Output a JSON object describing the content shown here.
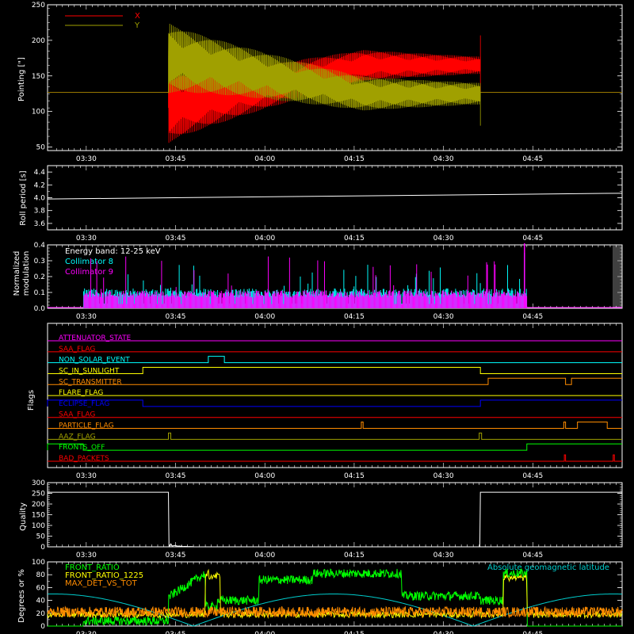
{
  "colors": {
    "background": "#000000",
    "axes": "#ffffff",
    "x_series": "#ff0000",
    "y_series": "#a0a000",
    "collimator8": "#00ffff",
    "collimator9": "#ff00ff",
    "front_ratio": "#00ff00",
    "front_ratio_1225": "#ffff00",
    "max_det_vs_tot": "#ff8c00",
    "geomag": "#00cccc"
  },
  "time_axis": {
    "labels": [
      "03:30",
      "03:45",
      "04:00",
      "04:15",
      "04:30",
      "04:45"
    ],
    "minutes": [
      210,
      225,
      240,
      255,
      270,
      285
    ],
    "range_minutes": [
      203.5,
      300
    ]
  },
  "chart_data": [
    {
      "panel": "pointing",
      "type": "line",
      "ylabel": "Pointing [\"]",
      "ylim": [
        45,
        250
      ],
      "yticks": [
        "50",
        "100",
        "150",
        "200",
        "250"
      ],
      "ytick_values": [
        50,
        100,
        150,
        200,
        250
      ],
      "legend": [
        "X",
        "Y"
      ],
      "legend_placement": "top-left",
      "series": [
        {
          "name": "X",
          "key": "x",
          "baseline": 127,
          "start": 223.8,
          "end": 276.2,
          "center_start": 105,
          "center_end": 165,
          "amp_start": 50,
          "amp_end": 12,
          "spike_max": 207
        },
        {
          "name": "Y",
          "key": "y",
          "baseline": 127,
          "start": 223.8,
          "end": 276.2,
          "center_start": 175,
          "center_end": 125,
          "amp_start": 50,
          "amp_end": 15,
          "spike_min": 80
        }
      ]
    },
    {
      "panel": "roll",
      "type": "line",
      "ylabel": "Roll period [s]",
      "ylim": [
        3.5,
        4.5
      ],
      "yticks": [
        "3.6",
        "3.8",
        "4.0",
        "4.2",
        "4.4"
      ],
      "ytick_values": [
        3.6,
        3.8,
        4.0,
        4.2,
        4.4
      ],
      "series": [
        {
          "name": "",
          "x": [
            203.5,
            300
          ],
          "y": [
            3.98,
            4.07
          ]
        }
      ]
    },
    {
      "panel": "modulation",
      "type": "bar",
      "ylabel": [
        "Normalized",
        "modulation"
      ],
      "ylim": [
        0,
        0.4
      ],
      "yticks": [
        "0.0",
        "0.1",
        "0.2",
        "0.3",
        "0.4"
      ],
      "ytick_values": [
        0.0,
        0.1,
        0.2,
        0.3,
        0.4
      ],
      "energy_band": "Energy band: 12-25 keV",
      "series": [
        {
          "name": "Collimator 8",
          "key": "collimator8",
          "start": 209.5,
          "end": 284.0,
          "typical": 0.1,
          "max": 0.35
        },
        {
          "name": "Collimator 9",
          "key": "collimator9",
          "start": 209.5,
          "end": 284.0,
          "typical": 0.09,
          "max": 0.41
        }
      ]
    },
    {
      "panel": "flags",
      "type": "line",
      "ylabel": "Flags",
      "flags": [
        {
          "name": "ATTENUATOR_STATE",
          "color": "#ff00ff",
          "steps": []
        },
        {
          "name": "SAA_FLAG",
          "color": "#ff0000",
          "steps": []
        },
        {
          "name": "NON_SOLAR_EVENT",
          "color": "#00ffff",
          "steps": [
            [
              230.5,
              1
            ],
            [
              233.2,
              0
            ]
          ]
        },
        {
          "name": "SC_IN_SUNLIGHT",
          "color": "#ffff00",
          "steps": [
            [
              203.5,
              0
            ],
            [
              219.5,
              1
            ],
            [
              276.2,
              0
            ]
          ]
        },
        {
          "name": "SC_TRANSMITTER",
          "color": "#ff8c00",
          "steps": [
            [
              277.5,
              1
            ],
            [
              290.5,
              0
            ],
            [
              291.5,
              1
            ]
          ]
        },
        {
          "name": "FLARE_FLAG",
          "color": "#ffff00",
          "steps": []
        },
        {
          "name": "ECLIPSE_FLAG",
          "color": "#0000ff",
          "steps": [
            [
              203.5,
              1
            ],
            [
              219.5,
              0
            ],
            [
              276.2,
              1
            ]
          ]
        },
        {
          "name": "SAA_FLAG",
          "color": "#ff0000",
          "steps": []
        },
        {
          "name": "PARTICLE_FLAG",
          "color": "#ff8c00",
          "steps": [
            [
              256.2,
              1
            ],
            [
              256.5,
              0
            ],
            [
              290.2,
              1
            ],
            [
              290.5,
              0
            ],
            [
              292.5,
              1
            ],
            [
              297.5,
              0
            ]
          ]
        },
        {
          "name": "AAZ_FLAG",
          "color": "#a0a000",
          "steps": [
            [
              223.8,
              1
            ],
            [
              224.2,
              0
            ],
            [
              276.0,
              1
            ],
            [
              276.4,
              0
            ]
          ]
        },
        {
          "name": "FRONTS_OFF",
          "color": "#00ff00",
          "steps": [
            [
              203.5,
              1
            ],
            [
              209.5,
              0
            ],
            [
              284.0,
              1
            ]
          ]
        },
        {
          "name": "BAD_PACKETS",
          "color": "#ff0000",
          "steps": [
            [
              290.3,
              1
            ],
            [
              290.5,
              0
            ],
            [
              298.5,
              1
            ],
            [
              298.7,
              0
            ]
          ]
        }
      ]
    },
    {
      "panel": "quality",
      "type": "line",
      "ylabel": "Quality",
      "ylim": [
        0,
        300
      ],
      "yticks": [
        "0",
        "50",
        "100",
        "150",
        "200",
        "250",
        "300"
      ],
      "ytick_values": [
        0,
        50,
        100,
        150,
        200,
        250,
        300
      ],
      "series": [
        {
          "name": "",
          "x": [
            203.5,
            223.8,
            223.9,
            276.1,
            276.2,
            300
          ],
          "y": [
            255,
            255,
            0,
            0,
            255,
            255
          ]
        }
      ]
    },
    {
      "panel": "ratios",
      "type": "line",
      "ylabel": "Degrees or %",
      "ylim": [
        0,
        100
      ],
      "yticks": [
        "0",
        "20",
        "40",
        "60",
        "80",
        "100"
      ],
      "ytick_values": [
        0,
        20,
        40,
        60,
        80,
        100
      ],
      "legend_placement": "top-left",
      "series": [
        {
          "name": "FRONT_RATIO",
          "key": "front_ratio"
        },
        {
          "name": "FRONT_RATIO_1225",
          "key": "front_ratio_1225"
        },
        {
          "name": "MAX_DET_VS_TOT",
          "key": "max_det_vs_tot"
        },
        {
          "name": "Absolute geomagnetic latitude",
          "key": "geomag"
        }
      ]
    }
  ]
}
